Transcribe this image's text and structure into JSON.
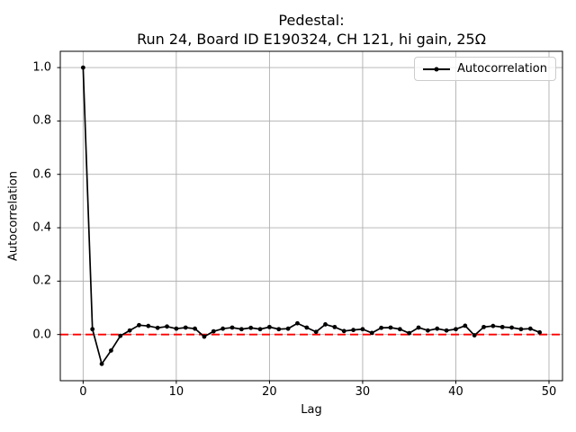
{
  "figure": {
    "title_line1": "Pedestal:",
    "title_line2": "Run 24, Board ID E190324, CH 121, hi gain, 25Ω"
  },
  "chart_data": {
    "type": "line",
    "title": "Pedestal:\nRun 24, Board ID E190324, CH 121, hi gain, 25Ω",
    "xlabel": "Lag",
    "ylabel": "Autocorrelation",
    "legend": [
      {
        "label": "Autocorrelation",
        "color": "#000000",
        "marker": "dot"
      }
    ],
    "legend_position": "upper right",
    "grid": true,
    "xlim": [
      -2.45,
      51.45
    ],
    "ylim": [
      -0.173,
      1.061
    ],
    "xticks": {
      "values": [
        0,
        10,
        20,
        30,
        40,
        50
      ],
      "labels": [
        "0",
        "10",
        "20",
        "30",
        "40",
        "50"
      ]
    },
    "yticks": {
      "values": [
        0.0,
        0.2,
        0.4,
        0.6,
        0.8,
        1.0
      ],
      "labels": [
        "0.0",
        "0.2",
        "0.4",
        "0.6",
        "0.8",
        "1.0"
      ]
    },
    "x": [
      0,
      1,
      2,
      3,
      4,
      5,
      6,
      7,
      8,
      9,
      10,
      11,
      12,
      13,
      14,
      15,
      16,
      17,
      18,
      19,
      20,
      21,
      22,
      23,
      24,
      25,
      26,
      27,
      28,
      29,
      30,
      31,
      32,
      33,
      34,
      35,
      36,
      37,
      38,
      39,
      40,
      41,
      42,
      43,
      44,
      45,
      46,
      47,
      48,
      49
    ],
    "series": [
      {
        "name": "Autocorrelation",
        "values": [
          1.0,
          0.02,
          -0.11,
          -0.06,
          -0.005,
          0.015,
          0.035,
          0.032,
          0.025,
          0.03,
          0.022,
          0.026,
          0.022,
          -0.008,
          0.012,
          0.022,
          0.026,
          0.02,
          0.025,
          0.02,
          0.028,
          0.02,
          0.022,
          0.042,
          0.026,
          0.01,
          0.038,
          0.028,
          0.013,
          0.017,
          0.02,
          0.006,
          0.025,
          0.026,
          0.02,
          0.005,
          0.026,
          0.015,
          0.022,
          0.015,
          0.02,
          0.033,
          -0.003,
          0.028,
          0.032,
          0.028,
          0.026,
          0.02,
          0.022,
          0.008
        ]
      }
    ],
    "zero_line": {
      "y": 0.0,
      "color": "#ff0000",
      "style": "dashed"
    },
    "colors": {
      "line": "#000000",
      "grid": "#b0b0b0",
      "zero_line": "#ff0000",
      "spine": "#000000",
      "background": "#ffffff"
    }
  }
}
